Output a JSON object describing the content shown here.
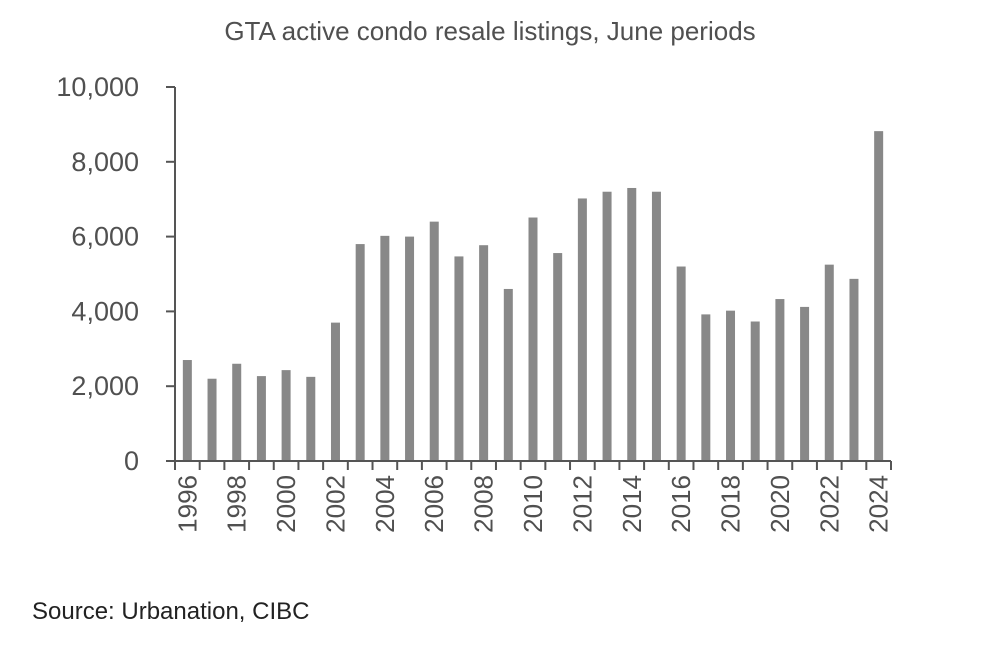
{
  "chart_data": {
    "type": "bar",
    "title": "GTA active condo resale listings, June periods",
    "source": "Source: Urbanation, CIBC",
    "xlabel": "",
    "ylabel": "",
    "ylim": [
      0,
      10000
    ],
    "yticks": [
      "0",
      "2,000",
      "4,000",
      "6,000",
      "8,000",
      "10,000"
    ],
    "ytick_values": [
      0,
      2000,
      4000,
      6000,
      8000,
      10000
    ],
    "categories": [
      "1996",
      "1997",
      "1998",
      "1999",
      "2000",
      "2001",
      "2002",
      "2003",
      "2004",
      "2005",
      "2006",
      "2007",
      "2008",
      "2009",
      "2010",
      "2011",
      "2012",
      "2013",
      "2014",
      "2015",
      "2016",
      "2017",
      "2018",
      "2019",
      "2020",
      "2021",
      "2022",
      "2023",
      "2024"
    ],
    "xtick_labels": [
      "1996",
      "1998",
      "2000",
      "2002",
      "2004",
      "2006",
      "2008",
      "2010",
      "2012",
      "2014",
      "2016",
      "2018",
      "2020",
      "2022",
      "2024"
    ],
    "values": [
      2700,
      2200,
      2600,
      2270,
      2430,
      2250,
      3700,
      5800,
      6020,
      6000,
      6400,
      5470,
      5770,
      4600,
      6510,
      5560,
      7020,
      7200,
      7300,
      7200,
      5200,
      3920,
      4020,
      3730,
      4330,
      4120,
      5250,
      4870,
      8820
    ],
    "grid": false,
    "legend": "none",
    "colors": {
      "bar": "#888888",
      "axis": "#555555",
      "text": "#505050"
    }
  }
}
